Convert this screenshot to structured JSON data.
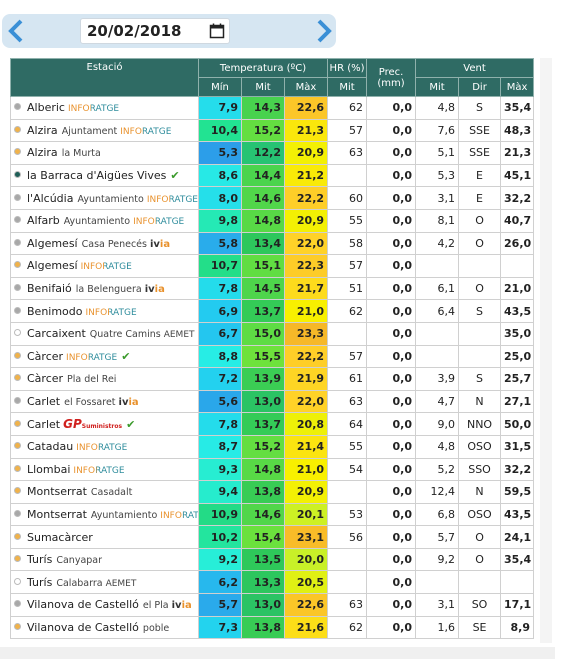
{
  "date_picker": {
    "date": "20/02/2018"
  },
  "table": {
    "headers": {
      "station": "Estació",
      "temperature": "Temperatura (ºC)",
      "humidity": "HR (%)",
      "precipitation": "Prec.",
      "precipitation_unit": "(mm)",
      "wind": "Vent",
      "temp_min": "Mín",
      "temp_mit": "Mit",
      "temp_max": "Màx",
      "humidity_mit": "Mit",
      "wind_mit": "Mit",
      "wind_dir": "Dir",
      "wind_max": "Màx"
    },
    "rows": [
      {
        "name": "Alberic",
        "source": "INFORATGE",
        "dot": "#a8a8a8",
        "t_min": "7,9",
        "t_mit": "14,3",
        "t_max": "22,6",
        "hr": "62",
        "prec": "0,0",
        "v_mit": "4,8",
        "dir": "S",
        "v_max": "35,4"
      },
      {
        "name": "Alzira",
        "place": "Ajuntament",
        "source": "INFORATGE",
        "dot": "#f0b24a",
        "t_min": "10,4",
        "t_mit": "15,2",
        "t_max": "21,3",
        "hr": "57",
        "prec": "0,0",
        "v_mit": "7,6",
        "dir": "SSE",
        "v_max": "48,3"
      },
      {
        "name": "Alzira",
        "place": "la Murta",
        "dot": "#f0b24a",
        "t_min": "5,3",
        "t_mit": "12,2",
        "t_max": "20,9",
        "hr": "63",
        "prec": "0,0",
        "v_mit": "5,1",
        "dir": "SSE",
        "v_max": "21,3"
      },
      {
        "name": "la Barraca d'Aigües Vives",
        "dot": "#1e5e57",
        "check": true,
        "t_min": "8,6",
        "t_mit": "14,4",
        "t_max": "21,2",
        "hr": null,
        "prec": "0,0",
        "v_mit": "5,3",
        "dir": "E",
        "v_max": "45,1"
      },
      {
        "name": "l'Alcúdia",
        "place": "Ayuntamiento",
        "source": "INFORATGE",
        "dot": "#a8a8a8",
        "t_min": "8,0",
        "t_mit": "14,6",
        "t_max": "22,2",
        "hr": "60",
        "prec": "0,0",
        "v_mit": "3,1",
        "dir": "E",
        "v_max": "32,2"
      },
      {
        "name": "Alfarb",
        "place": "Ayuntamiento",
        "source": "INFORATGE",
        "dot": "#a8a8a8",
        "t_min": "9,8",
        "t_mit": "14,8",
        "t_max": "20,9",
        "hr": "55",
        "prec": "0,0",
        "v_mit": "8,1",
        "dir": "O",
        "v_max": "40,7"
      },
      {
        "name": "Algemesí",
        "place": "Casa Penecés",
        "source": "ivia",
        "dot": "#a8a8a8",
        "t_min": "5,8",
        "t_mit": "13,4",
        "t_max": "22,0",
        "hr": "58",
        "prec": "0,0",
        "v_mit": "4,2",
        "dir": "O",
        "v_max": "26,0"
      },
      {
        "name": "Algemesí",
        "source": "INFORATGE",
        "dot": "#f0b24a",
        "t_min": "10,7",
        "t_mit": "15,1",
        "t_max": "22,3",
        "hr": "57",
        "prec": "0,0",
        "v_mit": null,
        "dir": null,
        "v_max": null
      },
      {
        "name": "Benifaió",
        "place": "la Belenguera",
        "source": "ivia",
        "dot": "#a8a8a8",
        "t_min": "7,8",
        "t_mit": "14,5",
        "t_max": "21,7",
        "hr": "51",
        "prec": "0,0",
        "v_mit": "6,1",
        "dir": "O",
        "v_max": "21,0"
      },
      {
        "name": "Benimodo",
        "source": "INFORATGE",
        "dot": "#a8a8a8",
        "t_min": "6,9",
        "t_mit": "13,7",
        "t_max": "21,0",
        "hr": "62",
        "prec": "0,0",
        "v_mit": "6,4",
        "dir": "S",
        "v_max": "43,5"
      },
      {
        "name": "Carcaixent",
        "place": "Quatre Camins",
        "source": "AEMET",
        "dot": "#ffffff",
        "t_min": "6,7",
        "t_mit": "15,0",
        "t_max": "23,3",
        "hr": null,
        "prec": "0,0",
        "v_mit": null,
        "dir": null,
        "v_max": "35,0"
      },
      {
        "name": "Càrcer",
        "source": "INFORATGE",
        "dot": "#f0b24a",
        "check": true,
        "t_min": "8,8",
        "t_mit": "15,5",
        "t_max": "22,2",
        "hr": "57",
        "prec": "0,0",
        "v_mit": null,
        "dir": null,
        "v_max": "25,0"
      },
      {
        "name": "Càrcer",
        "place": "Pla del Rei",
        "dot": "#f0b24a",
        "t_min": "7,2",
        "t_mit": "13,9",
        "t_max": "21,9",
        "hr": "61",
        "prec": "0,0",
        "v_mit": "3,9",
        "dir": "S",
        "v_max": "25,7"
      },
      {
        "name": "Carlet",
        "place": "el Fossaret",
        "source": "ivia",
        "dot": "#a8a8a8",
        "t_min": "5,6",
        "t_mit": "13,0",
        "t_max": "22,0",
        "hr": "63",
        "prec": "0,0",
        "v_mit": "4,7",
        "dir": "N",
        "v_max": "27,1"
      },
      {
        "name": "Carlet",
        "source": "GP",
        "source_sub": "Suministros",
        "dot": "#f0b24a",
        "check": true,
        "t_min": "7,8",
        "t_mit": "13,7",
        "t_max": "20,8",
        "hr": "64",
        "prec": "0,0",
        "v_mit": "9,0",
        "dir": "NNO",
        "v_max": "50,0"
      },
      {
        "name": "Catadau",
        "source": "INFORATGE",
        "dot": "#f0b24a",
        "t_min": "8,7",
        "t_mit": "15,2",
        "t_max": "21,4",
        "hr": "55",
        "prec": "0,0",
        "v_mit": "4,8",
        "dir": "OSO",
        "v_max": "31,5"
      },
      {
        "name": "Llombai",
        "source": "INFORATGE",
        "dot": "#f0b24a",
        "t_min": "9,3",
        "t_mit": "14,8",
        "t_max": "21,0",
        "hr": "54",
        "prec": "0,0",
        "v_mit": "5,2",
        "dir": "SSO",
        "v_max": "32,2"
      },
      {
        "name": "Montserrat",
        "place": "Casadalt",
        "dot": "#f0b24a",
        "t_min": "9,4",
        "t_mit": "13,8",
        "t_max": "20,9",
        "hr": null,
        "prec": "0,0",
        "v_mit": "12,4",
        "dir": "N",
        "v_max": "59,5"
      },
      {
        "name": "Montserrat",
        "place": "Ayuntamiento",
        "source": "INFORATGE",
        "dot": "#a8a8a8",
        "t_min": "10,9",
        "t_mit": "14,6",
        "t_max": "20,1",
        "hr": "53",
        "prec": "0,0",
        "v_mit": "6,8",
        "dir": "OSO",
        "v_max": "43,5"
      },
      {
        "name": "Sumacàrcer",
        "dot": "#f0b24a",
        "t_min": "10,2",
        "t_mit": "15,4",
        "t_max": "23,1",
        "hr": "56",
        "prec": "0,0",
        "v_mit": "5,7",
        "dir": "O",
        "v_max": "24,1"
      },
      {
        "name": "Turís",
        "place": "Canyapar",
        "dot": "#f0b24a",
        "t_min": "9,2",
        "t_mit": "13,5",
        "t_max": "20,0",
        "hr": null,
        "prec": "0,0",
        "v_mit": "9,2",
        "dir": "O",
        "v_max": "35,4"
      },
      {
        "name": "Turís",
        "place": "Calabarra",
        "source": "AEMET",
        "dot": "#ffffff",
        "t_min": "6,2",
        "t_mit": "13,3",
        "t_max": "20,5",
        "hr": null,
        "prec": "0,0",
        "v_mit": null,
        "dir": null,
        "v_max": null
      },
      {
        "name": "Vilanova de Castelló",
        "place": "el Pla",
        "source": "ivia",
        "dot": "#a8a8a8",
        "t_min": "5,7",
        "t_mit": "13,0",
        "t_max": "22,6",
        "hr": "63",
        "prec": "0,0",
        "v_mit": "3,1",
        "dir": "SO",
        "v_max": "17,1"
      },
      {
        "name": "Vilanova de Castelló",
        "place": "poble",
        "dot": "#f0b24a",
        "t_min": "7,3",
        "t_mit": "13,8",
        "t_max": "21,6",
        "hr": "62",
        "prec": "0,0",
        "v_mit": "1,6",
        "dir": "SE",
        "v_max": "8,9"
      }
    ]
  }
}
